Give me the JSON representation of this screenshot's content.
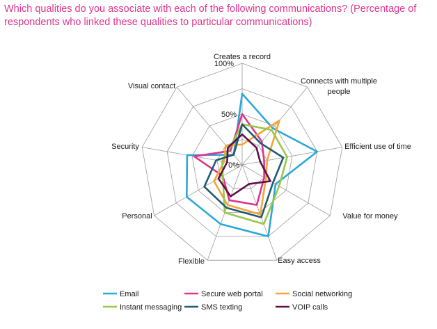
{
  "title": "Which qualities do you associate with each of the following communications? (Percentage of respondents who linked these qualities to particular communications)",
  "chart_data": {
    "type": "radar",
    "axes": [
      "Creates a record",
      "Connects with multiple people",
      "Efficient use of time",
      "Value for money",
      "Easy access",
      "Flexible",
      "Personal",
      "Security",
      "Visual contact"
    ],
    "ticks": [
      "0%",
      "50%",
      "100%"
    ],
    "rlim": [
      0,
      100
    ],
    "grid": true,
    "legend_position": "bottom",
    "series": [
      {
        "name": "Email",
        "color": "#2aa8d8",
        "values": [
          70,
          47,
          75,
          38,
          75,
          62,
          63,
          55,
          13
        ]
      },
      {
        "name": "Secure web portal",
        "color": "#e0338d",
        "values": [
          50,
          30,
          22,
          25,
          42,
          37,
          22,
          48,
          18
        ]
      },
      {
        "name": "Social networking",
        "color": "#f4a533",
        "values": [
          20,
          57,
          25,
          27,
          52,
          42,
          32,
          18,
          25
        ]
      },
      {
        "name": "Instant messaging",
        "color": "#9ac64b",
        "values": [
          40,
          45,
          45,
          42,
          62,
          50,
          22,
          20,
          20
        ]
      },
      {
        "name": "SMS texting",
        "color": "#1e5b73",
        "values": [
          40,
          28,
          41,
          35,
          55,
          45,
          43,
          26,
          13
        ]
      },
      {
        "name": "VOIP calls",
        "color": "#5e1045",
        "values": [
          30,
          22,
          18,
          32,
          20,
          33,
          27,
          15,
          22
        ]
      }
    ]
  }
}
